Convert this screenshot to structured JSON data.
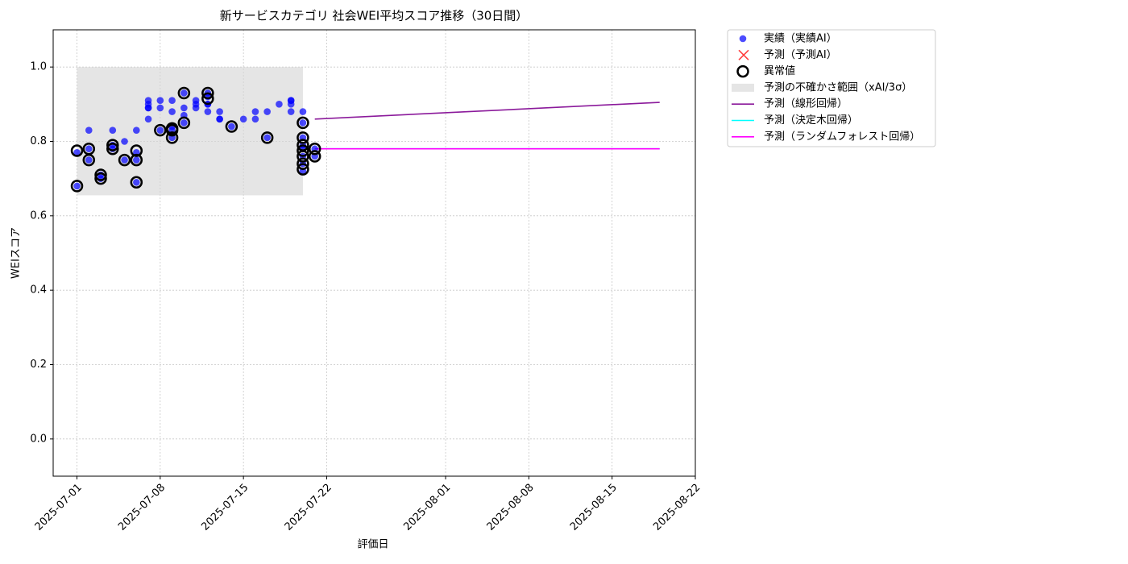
{
  "chart_data": {
    "type": "scatter",
    "title": "新サービスカテゴリ 社会WEI平均スコア推移（30日間）",
    "x_label": "評価日",
    "y_label": "WEIスコア",
    "xlim": [
      "2025-06-29",
      "2025-08-22"
    ],
    "xticks": [
      "2025-07-01",
      "2025-07-08",
      "2025-07-15",
      "2025-07-22",
      "2025-08-01",
      "2025-08-08",
      "2025-08-15",
      "2025-08-22"
    ],
    "ylim": [
      -0.1,
      1.1
    ],
    "yticks": [
      {
        "value": 0,
        "label": "0.0"
      },
      {
        "value": 0.2,
        "label": "0.2"
      },
      {
        "value": 0.4,
        "label": "0.4"
      },
      {
        "value": 0.6,
        "label": "0.6"
      },
      {
        "value": 0.8,
        "label": "0.8"
      },
      {
        "value": 1,
        "label": "1.0"
      }
    ],
    "grid": true,
    "legend": "outside-upper-right",
    "series": [
      {
        "name": "実績（実績AI）",
        "kind": "scatter",
        "color": "#0000ff",
        "x": [
          "2025-07-01",
          "2025-07-01",
          "2025-07-02",
          "2025-07-02",
          "2025-07-02",
          "2025-07-03",
          "2025-07-03",
          "2025-07-04",
          "2025-07-04",
          "2025-07-04",
          "2025-07-05",
          "2025-07-05",
          "2025-07-06",
          "2025-07-06",
          "2025-07-06",
          "2025-07-06",
          "2025-07-07",
          "2025-07-07",
          "2025-07-07",
          "2025-07-07",
          "2025-07-07",
          "2025-07-08",
          "2025-07-08",
          "2025-07-08",
          "2025-07-09",
          "2025-07-09",
          "2025-07-09",
          "2025-07-09",
          "2025-07-09",
          "2025-07-10",
          "2025-07-10",
          "2025-07-10",
          "2025-07-10",
          "2025-07-11",
          "2025-07-11",
          "2025-07-11",
          "2025-07-12",
          "2025-07-12",
          "2025-07-12",
          "2025-07-12",
          "2025-07-12",
          "2025-07-13",
          "2025-07-13",
          "2025-07-13",
          "2025-07-14",
          "2025-07-15",
          "2025-07-16",
          "2025-07-16",
          "2025-07-17",
          "2025-07-17",
          "2025-07-18",
          "2025-07-19",
          "2025-07-19",
          "2025-07-19",
          "2025-07-19",
          "2025-07-20",
          "2025-07-20",
          "2025-07-20",
          "2025-07-20",
          "2025-07-20",
          "2025-07-20",
          "2025-07-20",
          "2025-07-20",
          "2025-07-21",
          "2025-07-21"
        ],
        "values": [
          0.77,
          0.68,
          0.75,
          0.83,
          0.78,
          0.71,
          0.7,
          0.78,
          0.79,
          0.83,
          0.75,
          0.8,
          0.75,
          0.69,
          0.77,
          0.83,
          0.91,
          0.89,
          0.86,
          0.89,
          0.9,
          0.83,
          0.91,
          0.89,
          0.91,
          0.88,
          0.84,
          0.81,
          0.83,
          0.93,
          0.85,
          0.87,
          0.89,
          0.9,
          0.91,
          0.89,
          0.88,
          0.9,
          0.92,
          0.93,
          0.9,
          0.88,
          0.86,
          0.86,
          0.84,
          0.86,
          0.88,
          0.86,
          0.81,
          0.88,
          0.9,
          0.91,
          0.88,
          0.91,
          0.9,
          0.85,
          0.81,
          0.79,
          0.78,
          0.74,
          0.72,
          0.88,
          0.76,
          0.78,
          0.76
        ]
      },
      {
        "name": "予測（予測AI）",
        "kind": "cross",
        "color": "#ff0000",
        "x": [],
        "values": []
      },
      {
        "name": "異常値",
        "kind": "ring",
        "color": "#000000",
        "x": [
          "2025-07-01",
          "2025-07-01",
          "2025-07-02",
          "2025-07-02",
          "2025-07-03",
          "2025-07-03",
          "2025-07-04",
          "2025-07-04",
          "2025-07-05",
          "2025-07-06",
          "2025-07-06",
          "2025-07-06",
          "2025-07-08",
          "2025-07-09",
          "2025-07-09",
          "2025-07-09",
          "2025-07-10",
          "2025-07-10",
          "2025-07-12",
          "2025-07-12",
          "2025-07-14",
          "2025-07-17",
          "2025-07-20",
          "2025-07-20",
          "2025-07-20",
          "2025-07-20",
          "2025-07-20",
          "2025-07-20",
          "2025-07-20",
          "2025-07-21",
          "2025-07-21"
        ],
        "values": [
          0.775,
          0.68,
          0.75,
          0.78,
          0.71,
          0.7,
          0.78,
          0.79,
          0.75,
          0.75,
          0.69,
          0.775,
          0.83,
          0.835,
          0.81,
          0.83,
          0.93,
          0.85,
          0.915,
          0.93,
          0.84,
          0.81,
          0.85,
          0.81,
          0.79,
          0.775,
          0.74,
          0.725,
          0.76,
          0.78,
          0.76
        ]
      },
      {
        "name": "予測の不確かさ範囲（xAI/3σ）",
        "kind": "band",
        "color": "#d3d3d3",
        "x": [
          "2025-07-01",
          "2025-07-20"
        ],
        "low": [
          0.655,
          0.655
        ],
        "high": [
          1.0,
          1.0
        ]
      },
      {
        "name": "予測（線形回帰）",
        "kind": "line",
        "color": "#8b1a9b",
        "x": [
          "2025-07-21",
          "2025-08-19"
        ],
        "values": [
          0.86,
          0.905
        ]
      },
      {
        "name": "予測（決定木回帰）",
        "kind": "line",
        "color": "#00ffff",
        "x": [
          "2025-07-21",
          "2025-08-19"
        ],
        "values": [
          0.78,
          0.78
        ]
      },
      {
        "name": "予測（ランダムフォレスト回帰）",
        "kind": "line",
        "color": "#ff00ff",
        "x": [
          "2025-07-21",
          "2025-08-19"
        ],
        "values": [
          0.78,
          0.78
        ]
      }
    ]
  }
}
